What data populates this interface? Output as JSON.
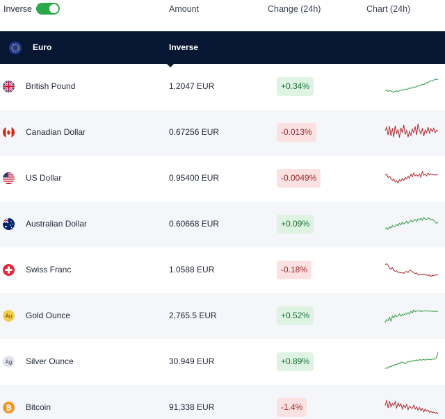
{
  "header": {
    "toggle_label": "Inverse",
    "toggle_on": true,
    "col_amount": "Amount",
    "col_change": "Change (24h)",
    "col_chart": "Chart (24h)"
  },
  "base": {
    "name": "Euro",
    "mode_label": "Inverse",
    "icon": "eu-flag-icon"
  },
  "colors": {
    "navy": "#071632",
    "toggle_green": "#2ba84a",
    "up_text": "#1c6f35",
    "up_bg": "#dff3e2",
    "down_text": "#9d2a2a",
    "down_bg": "#fbe1e1",
    "spark_up": "#2e9a3e",
    "spark_down": "#b3262c"
  },
  "rows": [
    {
      "name": "British Pound",
      "amount": "1.2047 EUR",
      "change": "+0.34%",
      "dir": "up",
      "icon": "uk-flag-icon",
      "spark": [
        0.35,
        0.34,
        0.3,
        0.33,
        0.31,
        0.28,
        0.27,
        0.3,
        0.32,
        0.29,
        0.33,
        0.36,
        0.35,
        0.38,
        0.4,
        0.37,
        0.42,
        0.45,
        0.43,
        0.47,
        0.5,
        0.48,
        0.52,
        0.55,
        0.53,
        0.58,
        0.62,
        0.6,
        0.65,
        0.7,
        0.68,
        0.74,
        0.78,
        0.76,
        0.8,
        0.85,
        0.82,
        0.86
      ]
    },
    {
      "name": "Canadian Dollar",
      "amount": "0.67256 EUR",
      "change": "-0.013%",
      "dir": "down",
      "icon": "canada-flag-icon",
      "spark": [
        0.6,
        0.75,
        0.4,
        0.8,
        0.35,
        0.7,
        0.3,
        0.82,
        0.45,
        0.65,
        0.28,
        0.72,
        0.5,
        0.85,
        0.42,
        0.6,
        0.3,
        0.55,
        0.38,
        0.66,
        0.5,
        0.78,
        0.4,
        0.9,
        0.6,
        0.45,
        0.7,
        0.35,
        0.62,
        0.5,
        0.75,
        0.48,
        0.68,
        0.55,
        0.7,
        0.5,
        0.62,
        0.58
      ]
    },
    {
      "name": "US Dollar",
      "amount": "0.95400 EUR",
      "change": "-0.0049%",
      "dir": "down",
      "icon": "us-flag-icon",
      "spark": [
        0.65,
        0.7,
        0.55,
        0.6,
        0.5,
        0.42,
        0.48,
        0.35,
        0.4,
        0.3,
        0.45,
        0.38,
        0.5,
        0.42,
        0.55,
        0.48,
        0.6,
        0.52,
        0.7,
        0.58,
        0.75,
        0.62,
        0.68,
        0.6,
        0.72,
        0.55,
        0.82,
        0.65,
        0.7,
        0.62,
        0.75,
        0.66,
        0.72,
        0.68,
        0.7,
        0.65,
        0.68,
        0.66
      ]
    },
    {
      "name": "Australian Dollar",
      "amount": "0.60668 EUR",
      "change": "+0.09%",
      "dir": "up",
      "icon": "australia-flag-icon",
      "spark": [
        0.3,
        0.35,
        0.28,
        0.4,
        0.33,
        0.45,
        0.38,
        0.42,
        0.5,
        0.44,
        0.55,
        0.48,
        0.6,
        0.52,
        0.58,
        0.65,
        0.55,
        0.62,
        0.7,
        0.6,
        0.68,
        0.72,
        0.64,
        0.75,
        0.7,
        0.78,
        0.68,
        0.82,
        0.74,
        0.72,
        0.8,
        0.76,
        0.7,
        0.74,
        0.68,
        0.62,
        0.55,
        0.6
      ]
    },
    {
      "name": "Swiss Franc",
      "amount": "1.0588 EUR",
      "change": "-0.18%",
      "dir": "down",
      "icon": "swiss-flag-icon",
      "spark": [
        0.75,
        0.8,
        0.72,
        0.6,
        0.55,
        0.62,
        0.5,
        0.45,
        0.48,
        0.4,
        0.42,
        0.38,
        0.4,
        0.36,
        0.42,
        0.45,
        0.4,
        0.48,
        0.5,
        0.44,
        0.4,
        0.35,
        0.38,
        0.3,
        0.28,
        0.32,
        0.3,
        0.34,
        0.28,
        0.3,
        0.26,
        0.3,
        0.22,
        0.28,
        0.25,
        0.3,
        0.28,
        0.3
      ]
    },
    {
      "name": "Gold Ounce",
      "amount": "2,765.5 EUR",
      "change": "+0.52%",
      "dir": "up",
      "icon": "gold-ounce-icon",
      "spark": [
        0.2,
        0.35,
        0.3,
        0.45,
        0.28,
        0.5,
        0.42,
        0.55,
        0.48,
        0.52,
        0.6,
        0.5,
        0.58,
        0.55,
        0.62,
        0.58,
        0.66,
        0.6,
        0.72,
        0.65,
        0.78,
        0.7,
        0.74,
        0.72,
        0.76,
        0.7,
        0.74,
        0.72,
        0.75,
        0.73,
        0.74,
        0.72,
        0.73,
        0.72,
        0.71,
        0.72,
        0.71,
        0.72
      ]
    },
    {
      "name": "Silver Ounce",
      "amount": "30.949 EUR",
      "change": "+0.89%",
      "dir": "up",
      "icon": "silver-ounce-icon",
      "spark": [
        0.2,
        0.25,
        0.22,
        0.3,
        0.28,
        0.35,
        0.32,
        0.4,
        0.38,
        0.45,
        0.42,
        0.48,
        0.5,
        0.46,
        0.42,
        0.48,
        0.52,
        0.5,
        0.55,
        0.52,
        0.58,
        0.55,
        0.6,
        0.56,
        0.62,
        0.58,
        0.6,
        0.62,
        0.58,
        0.64,
        0.6,
        0.62,
        0.6,
        0.64,
        0.62,
        0.66,
        0.7,
        0.95
      ]
    },
    {
      "name": "Bitcoin",
      "amount": "91,338 EUR",
      "change": "-1.4%",
      "dir": "down",
      "icon": "bitcoin-icon",
      "spark": [
        0.6,
        0.85,
        0.5,
        0.8,
        0.55,
        0.7,
        0.6,
        0.78,
        0.5,
        0.72,
        0.58,
        0.68,
        0.45,
        0.62,
        0.5,
        0.66,
        0.42,
        0.58,
        0.5,
        0.48,
        0.62,
        0.45,
        0.55,
        0.4,
        0.52,
        0.38,
        0.48,
        0.32,
        0.45,
        0.35,
        0.4,
        0.3,
        0.35,
        0.28,
        0.32,
        0.25,
        0.3,
        0.22
      ]
    }
  ]
}
